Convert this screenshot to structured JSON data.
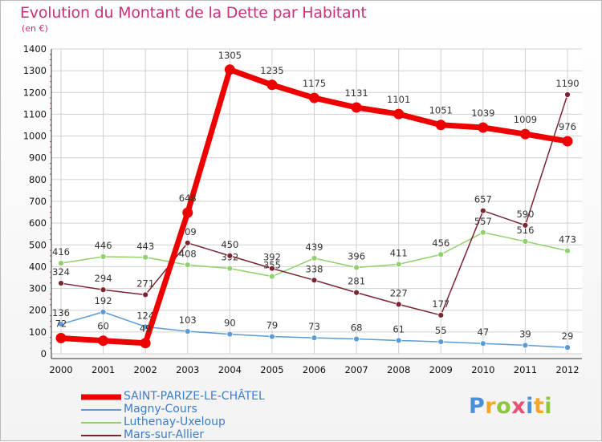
{
  "chart_data": {
    "type": "line",
    "title": "Evolution du Montant de la Dette par Habitant",
    "subtitle": "(en €)",
    "xlabel": "",
    "ylabel": "",
    "categories": [
      "2000",
      "2001",
      "2002",
      "2003",
      "2004",
      "2005",
      "2006",
      "2007",
      "2008",
      "2009",
      "2010",
      "2011",
      "2012"
    ],
    "ylim": [
      0,
      1400
    ],
    "yticks": [
      0,
      100,
      200,
      300,
      400,
      500,
      600,
      700,
      800,
      900,
      1000,
      1100,
      1200,
      1300,
      1400
    ],
    "grid": true,
    "series": [
      {
        "name": "Magny-Cours",
        "color": "#5b9bd5",
        "values": [
          136,
          192,
          124,
          103,
          90,
          79,
          73,
          68,
          61,
          55,
          47,
          39,
          29
        ]
      },
      {
        "name": "Luthenay-Uxeloup",
        "color": "#8fd16a",
        "values": [
          416,
          446,
          443,
          408,
          392,
          355,
          439,
          396,
          411,
          456,
          557,
          516,
          473
        ]
      },
      {
        "name": "Mars-sur-Allier",
        "color": "#7a2530",
        "values": [
          324,
          294,
          271,
          509,
          450,
          392,
          338,
          281,
          227,
          177,
          657,
          590,
          1190
        ]
      },
      {
        "name": "SAINT-PARIZE-LE-CHÂTEL",
        "color": "#ee0000",
        "values": [
          72,
          60,
          49,
          648,
          1305,
          1235,
          1175,
          1131,
          1101,
          1051,
          1039,
          1009,
          976
        ]
      }
    ],
    "legend": [
      {
        "name": "SAINT-PARIZE-LE-CHÂTEL",
        "color": "#ee0000",
        "weight": "thick"
      },
      {
        "name": "Magny-Cours",
        "color": "#5b9bd5",
        "weight": "thin"
      },
      {
        "name": "Luthenay-Uxeloup",
        "color": "#8fd16a",
        "weight": "thin"
      },
      {
        "name": "Mars-sur-Allier",
        "color": "#7a2530",
        "weight": "thin"
      }
    ],
    "legend_position": "bottom-left"
  },
  "brand": {
    "letters": [
      "P",
      "r",
      "o",
      "x",
      "i",
      "t",
      "i"
    ],
    "colors": [
      "#4a90d9",
      "#f5a623",
      "#8dc63f",
      "#e94e77",
      "#4a90d9",
      "#f5a623",
      "#8dc63f"
    ]
  }
}
